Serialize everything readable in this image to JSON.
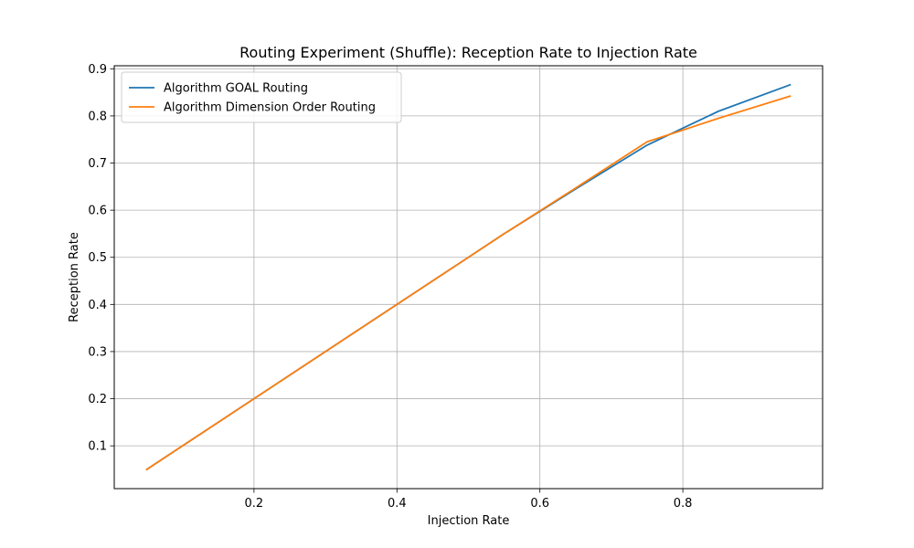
{
  "chart_data": {
    "type": "line",
    "title": "Routing Experiment (Shuffle): Reception Rate to Injection Rate",
    "xlabel": "Injection Rate",
    "ylabel": "Reception Rate",
    "xlim": [
      0.0045,
      0.9955
    ],
    "ylim": [
      0.0092,
      0.9064
    ],
    "xticks": [
      0.2,
      0.4,
      0.6,
      0.8
    ],
    "xtick_labels": [
      "0.2",
      "0.4",
      "0.6",
      "0.8"
    ],
    "yticks": [
      0.1,
      0.2,
      0.3,
      0.4,
      0.5,
      0.6,
      0.7,
      0.8,
      0.9
    ],
    "ytick_labels": [
      "0.1",
      "0.2",
      "0.3",
      "0.4",
      "0.5",
      "0.6",
      "0.7",
      "0.8",
      "0.9"
    ],
    "grid": true,
    "legend_position": "upper-left",
    "x": [
      0.05,
      0.15,
      0.25,
      0.35,
      0.45,
      0.55,
      0.65,
      0.75,
      0.85,
      0.95
    ],
    "series": [
      {
        "name": "Algorithm GOAL Routing",
        "color": "#1f77b4",
        "values": [
          0.05,
          0.15,
          0.25,
          0.35,
          0.45,
          0.55,
          0.645,
          0.738,
          0.81,
          0.866
        ]
      },
      {
        "name": "Algorithm Dimension Order Routing",
        "color": "#ff7f0e",
        "values": [
          0.05,
          0.15,
          0.25,
          0.35,
          0.45,
          0.55,
          0.647,
          0.745,
          0.795,
          0.842
        ]
      }
    ]
  }
}
